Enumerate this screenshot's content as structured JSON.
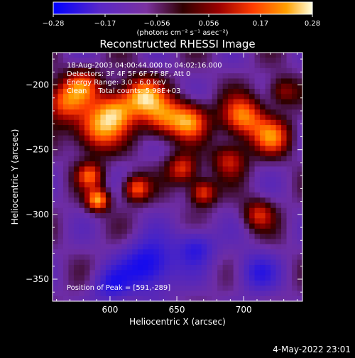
{
  "colorbar": {
    "tick_labels": [
      "-0.28",
      "-0.17",
      "-0.056",
      "0.056",
      "0.17",
      "0.28"
    ],
    "range": [
      -0.28,
      0.28
    ],
    "units": "(photons cm⁻² s⁻¹ asec⁻²)"
  },
  "chart_data": {
    "type": "heatmap",
    "title": "Reconstructed RHESSI Image",
    "xlabel": "Heliocentric X (arcsec)",
    "ylabel": "Heliocentric Y (arcsec)",
    "xlim": [
      557,
      744
    ],
    "ylim": [
      -367,
      -175
    ],
    "x_ticks": [
      600,
      650,
      700
    ],
    "y_ticks": [
      -200,
      -250,
      -300,
      -350
    ],
    "annotations": [
      "18-Aug-2003 04:00:44.000 to 04:02:16.000",
      "Detectors: 3F 4F 5F 6F 7F 8F, Att 0",
      "Energy Range: 3.0 - 6.0 keV",
      "Clean     Total counts: 5.98E+03"
    ],
    "peak_label": "Position of Peak = [591,-289]",
    "peak": [
      591,
      -289
    ],
    "sources": [
      {
        "x": 565,
        "y": -213,
        "amp": 0.22,
        "s": 11
      },
      {
        "x": 580,
        "y": -200,
        "amp": 0.18,
        "s": 9
      },
      {
        "x": 590,
        "y": -235,
        "amp": 0.24,
        "s": 12
      },
      {
        "x": 605,
        "y": -220,
        "amp": 0.26,
        "s": 11
      },
      {
        "x": 591,
        "y": -289,
        "amp": 0.28,
        "s": 6
      },
      {
        "x": 585,
        "y": -270,
        "amp": 0.2,
        "s": 7
      },
      {
        "x": 625,
        "y": -208,
        "amp": 0.26,
        "s": 10
      },
      {
        "x": 640,
        "y": -225,
        "amp": 0.22,
        "s": 11
      },
      {
        "x": 620,
        "y": -280,
        "amp": 0.23,
        "s": 7
      },
      {
        "x": 660,
        "y": -228,
        "amp": 0.24,
        "s": 10
      },
      {
        "x": 655,
        "y": -265,
        "amp": 0.2,
        "s": 8
      },
      {
        "x": 670,
        "y": -283,
        "amp": 0.22,
        "s": 7
      },
      {
        "x": 690,
        "y": -258,
        "amp": 0.17,
        "s": 9
      },
      {
        "x": 700,
        "y": -225,
        "amp": 0.26,
        "s": 11
      },
      {
        "x": 722,
        "y": -240,
        "amp": 0.22,
        "s": 10
      },
      {
        "x": 712,
        "y": -300,
        "amp": 0.17,
        "s": 8
      },
      {
        "x": 730,
        "y": -205,
        "amp": 0.14,
        "s": 8
      },
      {
        "x": 630,
        "y": -340,
        "amp": -0.2,
        "s": 14
      },
      {
        "x": 600,
        "y": -355,
        "amp": -0.12,
        "s": 10
      },
      {
        "x": 665,
        "y": -325,
        "amp": -0.14,
        "s": 10
      },
      {
        "x": 710,
        "y": -345,
        "amp": -0.12,
        "s": 11
      }
    ]
  },
  "footer": {
    "timestamp": "4-May-2022 23:01"
  }
}
